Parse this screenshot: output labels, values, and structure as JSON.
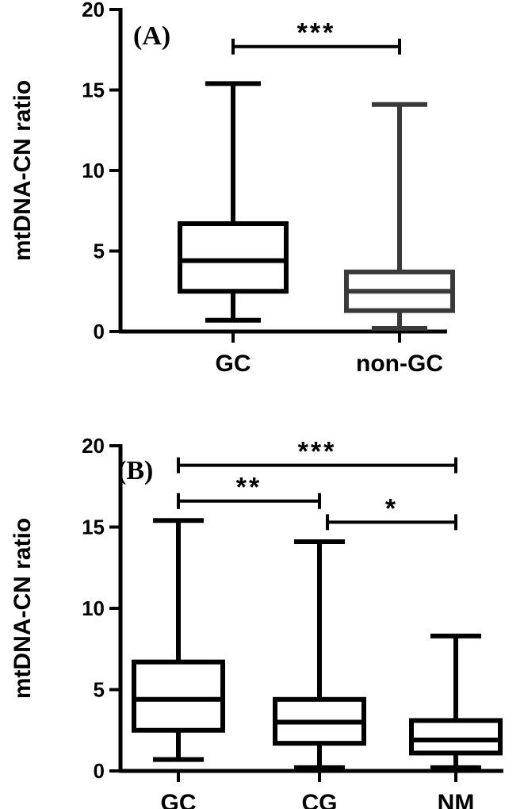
{
  "chart_data": [
    {
      "type": "box",
      "panel_label": "(A)",
      "ylabel": "mtDNA-CN ratio",
      "ylim": [
        0,
        20
      ],
      "yticks": [
        "0",
        "5",
        "10",
        "15",
        "20"
      ],
      "categories": [
        "GC",
        "non-GC"
      ],
      "boxes": [
        {
          "category": "GC",
          "min": 0.7,
          "q1": 2.5,
          "median": 4.4,
          "q3": 6.7,
          "max": 15.4,
          "color": "#000000"
        },
        {
          "category": "non-GC",
          "min": 0.2,
          "q1": 1.3,
          "median": 2.5,
          "q3": 3.7,
          "max": 14.1,
          "color": "#3a3a3a"
        }
      ],
      "significance": [
        {
          "from": "GC",
          "to": "non-GC",
          "y": 17.7,
          "label": "***"
        }
      ]
    },
    {
      "type": "box",
      "panel_label": "(B)",
      "ylabel": "mtDNA-CN ratio",
      "ylim": [
        0,
        20
      ],
      "yticks": [
        "0",
        "5",
        "10",
        "15",
        "20"
      ],
      "categories": [
        "GC",
        "CG",
        "NM"
      ],
      "boxes": [
        {
          "category": "GC",
          "min": 0.7,
          "q1": 2.5,
          "median": 4.4,
          "q3": 6.7,
          "max": 15.4,
          "color": "#000000"
        },
        {
          "category": "CG",
          "min": 0.2,
          "q1": 1.7,
          "median": 3.0,
          "q3": 4.4,
          "max": 14.1,
          "color": "#000000"
        },
        {
          "category": "NM",
          "min": 0.2,
          "q1": 1.1,
          "median": 1.9,
          "q3": 3.1,
          "max": 8.3,
          "color": "#000000"
        }
      ],
      "significance": [
        {
          "from": "GC",
          "to": "NM",
          "y": 18.8,
          "label": "***"
        },
        {
          "from": "GC",
          "to": "CG",
          "y": 16.6,
          "label": "**"
        },
        {
          "from": "CG",
          "to": "NM",
          "y": 15.3,
          "label": "*"
        }
      ]
    }
  ]
}
